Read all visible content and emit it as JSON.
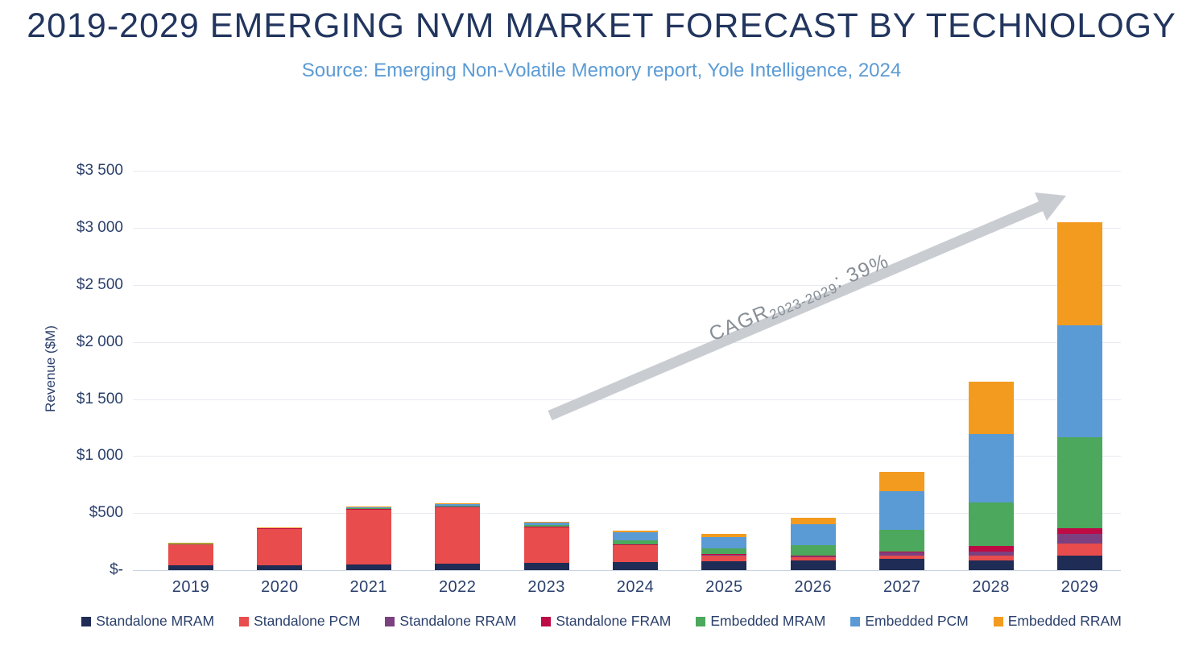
{
  "title": "2019-2029 EMERGING NVM MARKET FORECAST BY TECHNOLOGY",
  "subtitle": "Source: Emerging Non-Volatile Memory report, Yole Intelligence, 2024",
  "annotation": {
    "prefix": "CAGR",
    "subscript": "2023-2029",
    "suffix": ": 39%",
    "arrow_color": "#C9CDD2",
    "text_color": "#878E96"
  },
  "chart_data": {
    "type": "bar",
    "stacked": true,
    "title": "2019-2029 Emerging NVM Market Forecast by Technology",
    "ylabel": "Revenue ($M)",
    "xlabel": "",
    "ylim": [
      0,
      3500
    ],
    "grid": true,
    "legend_position": "bottom",
    "yticks": [
      "$-",
      "$500",
      "$1 000",
      "$1 500",
      "$2 000",
      "$2 500",
      "$3 000",
      "$3 500"
    ],
    "categories": [
      "2019",
      "2020",
      "2021",
      "2022",
      "2023",
      "2024",
      "2025",
      "2026",
      "2027",
      "2028",
      "2029"
    ],
    "series": [
      {
        "name": "Standalone MRAM",
        "color": "#1F2C55",
        "values": [
          40,
          45,
          50,
          58,
          65,
          72,
          78,
          88,
          100,
          85,
          125
        ]
      },
      {
        "name": "Standalone PCM",
        "color": "#E84C4C",
        "values": [
          190,
          320,
          485,
          500,
          315,
          150,
          55,
          25,
          30,
          40,
          110
        ]
      },
      {
        "name": "Standalone RRAM",
        "color": "#7C4080",
        "values": [
          2,
          2,
          3,
          3,
          3,
          3,
          3,
          7,
          25,
          35,
          80
        ]
      },
      {
        "name": "Standalone FRAM",
        "color": "#BE0A45",
        "values": [
          1,
          1,
          1,
          1,
          1,
          2,
          2,
          7,
          5,
          50,
          50
        ]
      },
      {
        "name": "Embedded MRAM",
        "color": "#4BA85C",
        "values": [
          3,
          4,
          8,
          5,
          8,
          36,
          52,
          95,
          190,
          385,
          800
        ]
      },
      {
        "name": "Embedded PCM",
        "color": "#5B9BD5",
        "values": [
          3,
          4,
          8,
          18,
          28,
          68,
          100,
          180,
          345,
          600,
          985
        ]
      },
      {
        "name": "Embedded RRAM",
        "color": "#F39B1F",
        "values": [
          1,
          1,
          1,
          1,
          2,
          12,
          25,
          55,
          165,
          460,
          900
        ]
      }
    ],
    "totals": [
      240,
      377,
      556,
      586,
      422,
      343,
      315,
      457,
      860,
      1655,
      3050
    ]
  }
}
